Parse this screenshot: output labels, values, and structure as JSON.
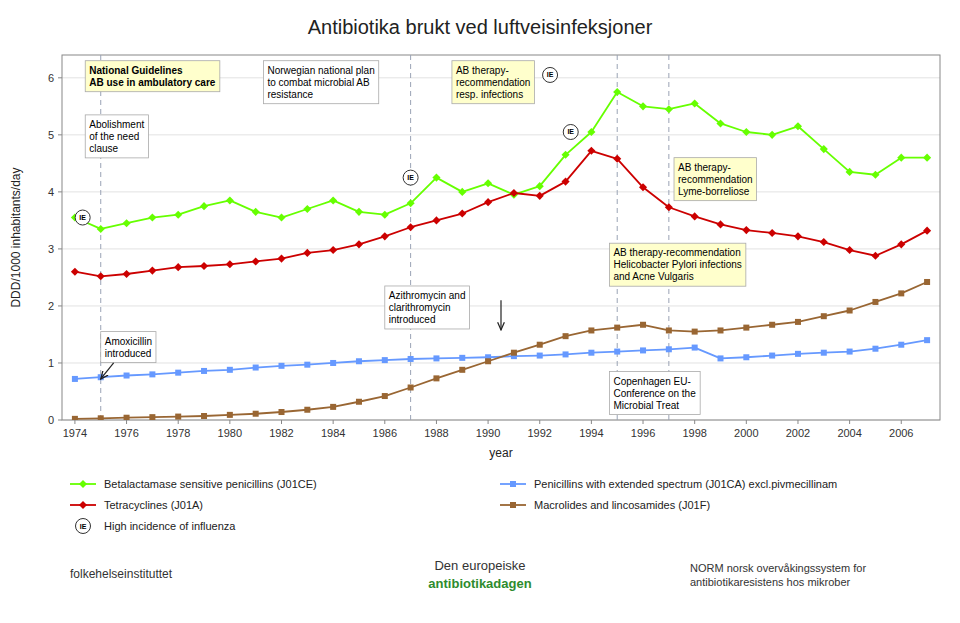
{
  "chart_data": {
    "type": "line",
    "title": "Antibiotika brukt ved luftveisinfeksjoner",
    "x_label": "year",
    "y_label": "DDD/1000 inhabitants/day",
    "x": [
      1974,
      1975,
      1976,
      1977,
      1978,
      1979,
      1980,
      1981,
      1982,
      1983,
      1984,
      1985,
      1986,
      1987,
      1988,
      1989,
      1990,
      1991,
      1992,
      1993,
      1994,
      1995,
      1996,
      1997,
      1998,
      1999,
      2000,
      2001,
      2002,
      2003,
      2004,
      2005,
      2006,
      2007
    ],
    "xlim": [
      1973.5,
      2007.5
    ],
    "ylim": [
      0,
      6.4
    ],
    "xticks": [
      1974,
      1976,
      1978,
      1980,
      1982,
      1984,
      1986,
      1988,
      1990,
      1992,
      1994,
      1996,
      1998,
      2000,
      2002,
      2004,
      2006
    ],
    "yticks": [
      0,
      1,
      2,
      3,
      4,
      5,
      6
    ],
    "grid": true,
    "series": [
      {
        "name": "Betalactamase sensitive penicillins (J01CE)",
        "color": "#66ff00",
        "marker": "diamond",
        "values": [
          3.55,
          3.35,
          3.45,
          3.55,
          3.6,
          3.75,
          3.85,
          3.65,
          3.55,
          3.7,
          3.85,
          3.65,
          3.6,
          3.8,
          4.25,
          4.0,
          4.15,
          3.95,
          4.1,
          4.65,
          5.05,
          5.75,
          5.5,
          5.45,
          5.55,
          5.2,
          5.05,
          5.0,
          5.15,
          4.75,
          4.35,
          4.3,
          4.6,
          4.6
        ]
      },
      {
        "name": "Penicillins with extended spectrum (J01CA) excl.pivmecillinam",
        "color": "#6699ff",
        "marker": "square",
        "values": [
          0.72,
          0.75,
          0.78,
          0.8,
          0.83,
          0.86,
          0.88,
          0.92,
          0.95,
          0.97,
          1.0,
          1.03,
          1.05,
          1.07,
          1.08,
          1.09,
          1.1,
          1.12,
          1.13,
          1.15,
          1.18,
          1.2,
          1.22,
          1.24,
          1.27,
          1.08,
          1.1,
          1.13,
          1.16,
          1.18,
          1.2,
          1.25,
          1.32,
          1.4
        ]
      },
      {
        "name": "Tetracyclines (J01A)",
        "color": "#cc0000",
        "marker": "diamond",
        "values": [
          2.6,
          2.52,
          2.56,
          2.62,
          2.68,
          2.7,
          2.73,
          2.78,
          2.83,
          2.93,
          2.98,
          3.08,
          3.22,
          3.38,
          3.5,
          3.62,
          3.82,
          3.98,
          3.93,
          4.18,
          4.72,
          4.58,
          4.08,
          3.73,
          3.57,
          3.43,
          3.33,
          3.28,
          3.22,
          3.12,
          2.98,
          2.88,
          3.08,
          3.32
        ]
      },
      {
        "name": "Macrolides and lincosamides (J01F)",
        "color": "#996633",
        "marker": "square",
        "values": [
          0.02,
          0.03,
          0.04,
          0.05,
          0.06,
          0.07,
          0.09,
          0.11,
          0.14,
          0.18,
          0.23,
          0.32,
          0.42,
          0.57,
          0.73,
          0.88,
          1.03,
          1.18,
          1.32,
          1.47,
          1.57,
          1.62,
          1.67,
          1.57,
          1.55,
          1.57,
          1.62,
          1.67,
          1.72,
          1.82,
          1.92,
          2.07,
          2.22,
          2.42
        ]
      }
    ],
    "vlines": [
      1975,
      1987,
      1995,
      1997
    ],
    "influenza": {
      "marker_label": "IE",
      "label": "High incidence of influenza",
      "points": [
        {
          "x": 1974.3,
          "y": 3.55
        },
        {
          "x": 1987.0,
          "y": 4.25
        },
        {
          "x": 1993.2,
          "y": 5.05
        },
        {
          "x": 1992.4,
          "y": 6.05
        }
      ]
    },
    "annotations": [
      {
        "text": "AB therapy-\nrecommendation\nresp. infections"
      },
      {
        "text": "Norwegian national plan\nto combat microbial AB\nresistance"
      },
      {
        "text": "National Guidelines\nAB use in ambulatory care"
      },
      {
        "text": "AB therapy-\nrecommendation\nLyme-borreliose"
      },
      {
        "text": "Abolishment\nof the need\nclause"
      },
      {
        "text": "AB therapy-recommendation\nHelicobacter Pylori infections\nand Acne Vulgaris"
      },
      {
        "text": "Azithromycin and\nclarithromycin\nintroduced"
      },
      {
        "text": "Amoxicillin\nintroduced"
      },
      {
        "text": "Copenhagen EU-\nConference on the\nMicrobial Treat"
      }
    ],
    "footer": [
      "folkehelseinstituttet",
      "Den europeiske",
      "antibiotikadagen",
      "NORM norsk overvåkingssystem for\nantibiotikaresistens hos mikrober"
    ]
  }
}
